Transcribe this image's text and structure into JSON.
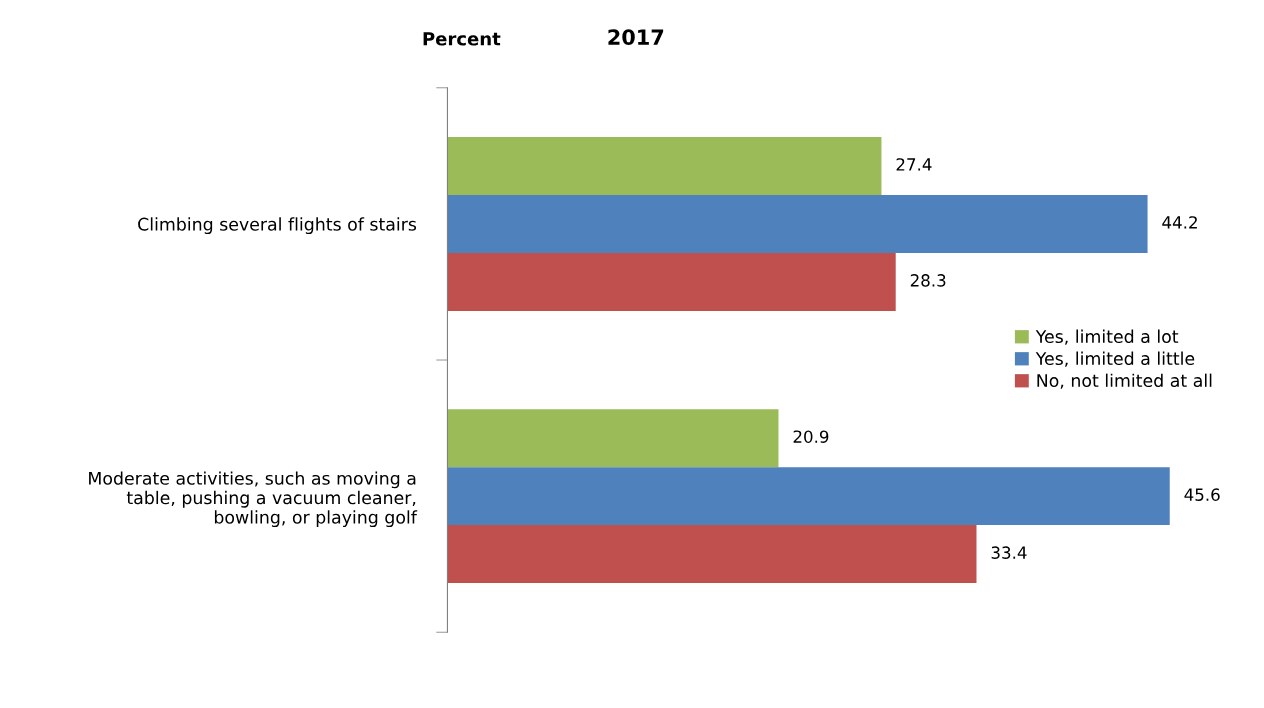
{
  "chart_data": {
    "type": "bar",
    "orientation": "horizontal",
    "title": "2017",
    "xlabel": "Percent",
    "categories": [
      "Climbing several flights of stairs",
      "Moderate activities, such as moving a\ntable, pushing a vacuum cleaner,\nbowling, or playing golf"
    ],
    "series": [
      {
        "name": "Yes, limited a lot",
        "color": "#9bbb59",
        "values": [
          27.4,
          20.9
        ]
      },
      {
        "name": "Yes, limited a little",
        "color": "#4f81bd",
        "values": [
          44.2,
          45.6
        ]
      },
      {
        "name": "No, not limited at all",
        "color": "#c0504d",
        "values": [
          28.3,
          33.4
        ]
      }
    ],
    "data_labels": true,
    "legend": "right",
    "grid": false
  }
}
